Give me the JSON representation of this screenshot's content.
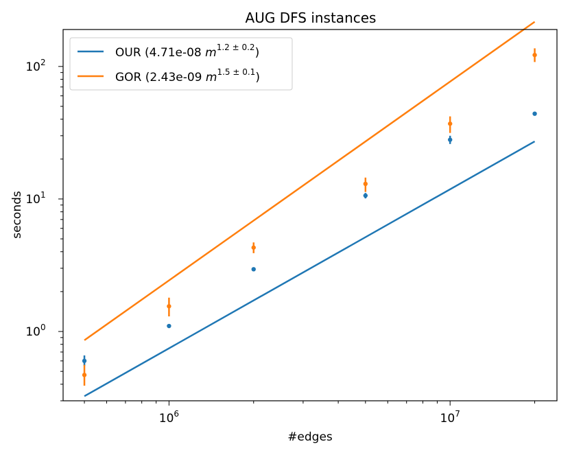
{
  "chart_data": {
    "type": "scatter",
    "title": "AUG DFS instances",
    "xlabel": "#edges",
    "ylabel": "seconds",
    "xscale": "log",
    "yscale": "log",
    "xlim": [
      420000,
      24000000
    ],
    "ylim": [
      0.3,
      190
    ],
    "xticks": [
      {
        "value": 1000000,
        "base": "10",
        "exp": "6"
      },
      {
        "value": 10000000,
        "base": "10",
        "exp": "7"
      }
    ],
    "yticks": [
      {
        "value": 1,
        "base": "10",
        "exp": "0"
      },
      {
        "value": 10,
        "base": "10",
        "exp": "1"
      },
      {
        "value": 100,
        "base": "10",
        "exp": "2"
      }
    ],
    "grid": false,
    "legend_position": "top-left",
    "series": [
      {
        "name_prefix": "OUR (4.71e-08 ",
        "name_var": "m",
        "name_exp": "1.2 ± 0.2",
        "name_suffix": ")",
        "color": "#1f77b4",
        "fit": {
          "coef": 4.71e-08,
          "exponent": 1.2
        },
        "points": [
          {
            "x": 500000,
            "y": 0.6,
            "lo": 0.55,
            "hi": 0.66
          },
          {
            "x": 1000000,
            "y": 1.1,
            "lo": 1.08,
            "hi": 1.12
          },
          {
            "x": 2000000,
            "y": 2.95,
            "lo": 2.9,
            "hi": 3.0
          },
          {
            "x": 5000000,
            "y": 10.6,
            "lo": 10.1,
            "hi": 11.1
          },
          {
            "x": 10000000,
            "y": 28,
            "lo": 26,
            "hi": 30
          },
          {
            "x": 20000000,
            "y": 44,
            "lo": 43,
            "hi": 45
          }
        ]
      },
      {
        "name_prefix": "GOR (2.43e-09 ",
        "name_var": "m",
        "name_exp": "1.5 ± 0.1",
        "name_suffix": ")",
        "color": "#ff7f0e",
        "fit": {
          "coef": 2.43e-09,
          "exponent": 1.5
        },
        "points": [
          {
            "x": 500000,
            "y": 0.47,
            "lo": 0.39,
            "hi": 0.56
          },
          {
            "x": 1000000,
            "y": 1.55,
            "lo": 1.3,
            "hi": 1.8
          },
          {
            "x": 2000000,
            "y": 4.3,
            "lo": 3.9,
            "hi": 4.7
          },
          {
            "x": 5000000,
            "y": 13,
            "lo": 11.3,
            "hi": 14.5
          },
          {
            "x": 10000000,
            "y": 37,
            "lo": 31.5,
            "hi": 42
          },
          {
            "x": 20000000,
            "y": 122,
            "lo": 108,
            "hi": 137
          }
        ]
      }
    ]
  }
}
